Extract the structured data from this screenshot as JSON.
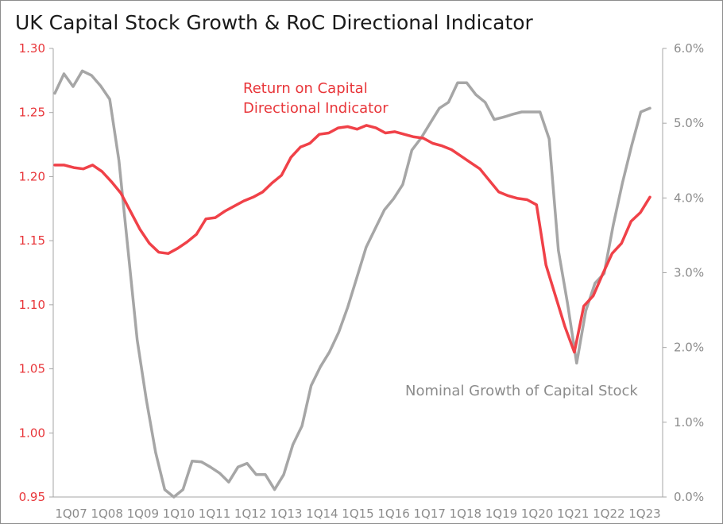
{
  "chart_data": {
    "type": "line",
    "title": "UK Capital Stock Growth & RoC Directional Indicator",
    "x_tick_labels": [
      "1Q07",
      "1Q08",
      "1Q09",
      "1Q10",
      "1Q11",
      "1Q12",
      "1Q13",
      "1Q14",
      "1Q15",
      "1Q16",
      "1Q17",
      "1Q18",
      "1Q19",
      "1Q20",
      "1Q21",
      "1Q22",
      "1Q23"
    ],
    "y_left": {
      "ylim": [
        0.95,
        1.3
      ],
      "ticks": [
        "0.95",
        "1.00",
        "1.05",
        "1.10",
        "1.15",
        "1.20",
        "1.25",
        "1.30"
      ]
    },
    "y_right": {
      "ylim": [
        0.0,
        6.0
      ],
      "ticks": [
        "0.0%",
        "1.0%",
        "2.0%",
        "3.0%",
        "4.0%",
        "5.0%",
        "6.0%"
      ]
    },
    "series": [
      {
        "name": "Return on Capital Directional Indicator",
        "axis": "left",
        "color": "#f04148",
        "values": [
          1.209,
          1.209,
          1.207,
          1.206,
          1.209,
          1.204,
          1.196,
          1.187,
          1.173,
          1.159,
          1.148,
          1.141,
          1.14,
          1.144,
          1.149,
          1.155,
          1.167,
          1.168,
          1.173,
          1.177,
          1.181,
          1.184,
          1.188,
          1.195,
          1.201,
          1.215,
          1.223,
          1.226,
          1.233,
          1.234,
          1.238,
          1.239,
          1.237,
          1.24,
          1.238,
          1.234,
          1.235,
          1.233,
          1.231,
          1.23,
          1.226,
          1.224,
          1.221,
          1.216,
          1.211,
          1.206,
          1.197,
          1.188,
          1.185,
          1.183,
          1.182,
          1.178,
          1.131,
          1.107,
          1.083,
          1.063,
          1.099,
          1.107,
          1.124,
          1.14,
          1.148,
          1.165,
          1.172,
          1.184
        ]
      },
      {
        "name": "Nominal Growth of Capital Stock",
        "axis": "right",
        "color": "#a6a6a6",
        "values": [
          5.4,
          5.66,
          5.49,
          5.7,
          5.64,
          5.5,
          5.32,
          4.5,
          3.3,
          2.1,
          1.3,
          0.6,
          0.1,
          0.0,
          0.1,
          0.48,
          0.47,
          0.4,
          0.32,
          0.2,
          0.4,
          0.45,
          0.3,
          0.3,
          0.1,
          0.3,
          0.7,
          0.95,
          1.49,
          1.74,
          1.94,
          2.2,
          2.54,
          2.94,
          3.34,
          3.59,
          3.84,
          3.99,
          4.18,
          4.64,
          4.8,
          5.0,
          5.2,
          5.28,
          5.54,
          5.54,
          5.38,
          5.28,
          5.05,
          5.08,
          5.12,
          5.15,
          5.15,
          5.15,
          4.79,
          3.3,
          2.59,
          1.79,
          2.49,
          2.86,
          2.99,
          3.64,
          4.2,
          4.7,
          5.15,
          5.2
        ]
      }
    ],
    "annotations": {
      "roc_line1": "Return on Capital",
      "roc_line2": "Directional Indicator",
      "growth": "Nominal Growth  of Capital Stock"
    }
  }
}
